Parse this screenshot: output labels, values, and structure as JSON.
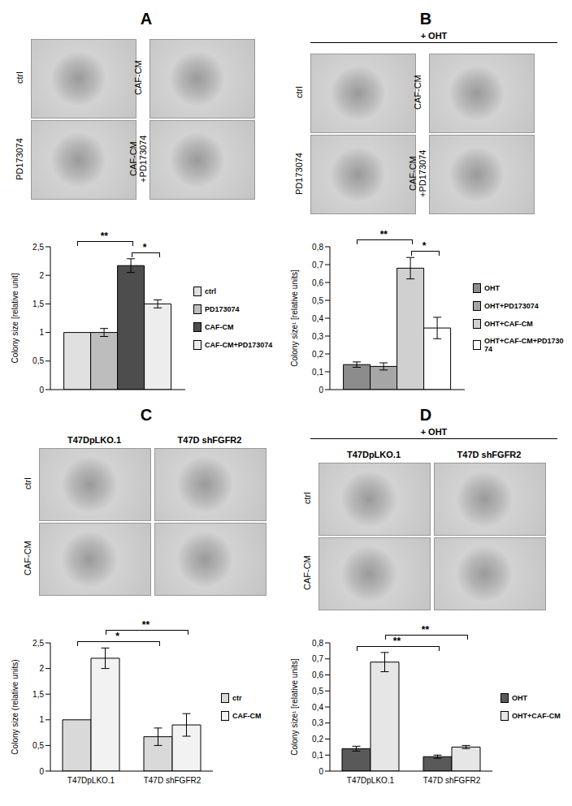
{
  "panels": [
    {
      "letter": "A",
      "photo_labels": [
        "ctrl",
        "PD173074",
        "CAF-CM",
        "CAF-CM +PD173074"
      ]
    },
    {
      "letter": "B",
      "header": "+ OHT",
      "photo_labels": [
        "ctrl",
        "PD173074",
        "CAF-CM",
        "CAF-CM +PD173074"
      ]
    },
    {
      "letter": "C",
      "column_labels": [
        "T47DpLKO.1",
        "T47D shFGFR2"
      ],
      "row_labels": [
        "ctrl",
        "CAF-CM"
      ]
    },
    {
      "letter": "D",
      "header": "+ OHT",
      "column_labels": [
        "T47DpLKO.1",
        "T47D shFGFR2"
      ],
      "row_labels": [
        "ctrl",
        "CAF-CM"
      ]
    }
  ],
  "chart_data": [
    {
      "type": "bar",
      "categories": [
        null
      ],
      "y_label": "Colony size [relative unit]",
      "tick_labels": "y",
      "ylim": [
        0,
        2.5
      ],
      "yticks": [
        0,
        {
          "value": 0.5,
          "label": "0,5"
        },
        1,
        {
          "value": 1.5,
          "label": "1,5"
        },
        2,
        {
          "value": 2.5,
          "label": "2,5"
        }
      ],
      "series": [
        {
          "name": "ctrl",
          "color": "#e0e0e0",
          "values": [
            1.0
          ],
          "errors": [
            0.0
          ]
        },
        {
          "name": "PD173074",
          "color": "#bdbdbd",
          "values": [
            1.0
          ],
          "errors": [
            0.07
          ]
        },
        {
          "name": "CAF-CM",
          "color": "#4d4d4d",
          "values": [
            2.17
          ],
          "errors": [
            0.12
          ]
        },
        {
          "name": "CAF-CM+PD173074",
          "color": "#ededed",
          "values": [
            1.5
          ],
          "errors": [
            0.07
          ]
        }
      ],
      "annotations": [
        "**",
        "*"
      ]
    },
    {
      "type": "bar",
      "categories": [
        null
      ],
      "y_label": "Colony size¹ [relative units]",
      "tick_labels": "y",
      "ylim": [
        0,
        0.8
      ],
      "yticks": [
        0,
        {
          "value": 0.1,
          "label": "0,1"
        },
        {
          "value": 0.2,
          "label": "0,2"
        },
        {
          "value": 0.3,
          "label": "0,3"
        },
        {
          "value": 0.4,
          "label": "0,4"
        },
        {
          "value": 0.5,
          "label": "0,5"
        },
        {
          "value": 0.6,
          "label": "0,6"
        },
        {
          "value": 0.7,
          "label": "0,7"
        },
        {
          "value": 0.8,
          "label": "0,8"
        }
      ],
      "series": [
        {
          "name": "OHT",
          "color": "#8c8c8c",
          "values": [
            0.14
          ],
          "errors": [
            0.015
          ]
        },
        {
          "name": "OHT+PD173074",
          "color": "#a6a6a6",
          "values": [
            0.13
          ],
          "errors": [
            0.02
          ]
        },
        {
          "name": "OHT+CAF-CM",
          "color": "#d0d0d0",
          "values": [
            0.68
          ],
          "errors": [
            0.06
          ]
        },
        {
          "name": "OHT+CAF-CM+PD173074",
          "color": "#ffffff",
          "values": [
            0.345
          ],
          "errors": [
            0.06
          ]
        }
      ],
      "annotations": [
        "**",
        "*"
      ]
    },
    {
      "type": "bar",
      "categories": [
        "T47DpLKO.1",
        "T47D shFGFR2"
      ],
      "y_label": "Colony size (relative units)",
      "ylim": [
        0,
        2.5
      ],
      "yticks": [
        0,
        {
          "value": 0.5,
          "label": "0,5"
        },
        1,
        {
          "value": 1.5,
          "label": "1,5"
        },
        2,
        {
          "value": 2.5,
          "label": "2,5"
        }
      ],
      "series": [
        {
          "name": "ctr",
          "color": "#d9d9d9",
          "values": [
            1.0,
            0.67
          ],
          "errors": [
            0.0,
            0.17
          ]
        },
        {
          "name": "CAF-CM",
          "color": "#f2f2f2",
          "values": [
            2.2,
            0.9
          ],
          "errors": [
            0.2,
            0.22
          ]
        }
      ],
      "annotations": [
        "*",
        "**"
      ]
    },
    {
      "type": "bar",
      "categories": [
        "T47DpLKO.1",
        "T47D shFGFR2"
      ],
      "y_label": "Colony size¹ [relative units]",
      "ylim": [
        0,
        0.8
      ],
      "yticks": [
        0,
        {
          "value": 0.1,
          "label": "0,1"
        },
        {
          "value": 0.2,
          "label": "0,2"
        },
        {
          "value": 0.3,
          "label": "0,3"
        },
        {
          "value": 0.4,
          "label": "0,4"
        },
        {
          "value": 0.5,
          "label": "0,5"
        },
        {
          "value": 0.6,
          "label": "0,6"
        },
        {
          "value": 0.7,
          "label": "0,7"
        },
        {
          "value": 0.8,
          "label": "0,8"
        }
      ],
      "series": [
        {
          "name": "OHT",
          "color": "#595959",
          "values": [
            0.14,
            0.09
          ],
          "errors": [
            0.015,
            0.01
          ]
        },
        {
          "name": "OHT+CAF-CM",
          "color": "#e6e6e6",
          "values": [
            0.68,
            0.15
          ],
          "errors": [
            0.06,
            0.01
          ]
        }
      ],
      "annotations": [
        "**",
        "**"
      ]
    }
  ]
}
